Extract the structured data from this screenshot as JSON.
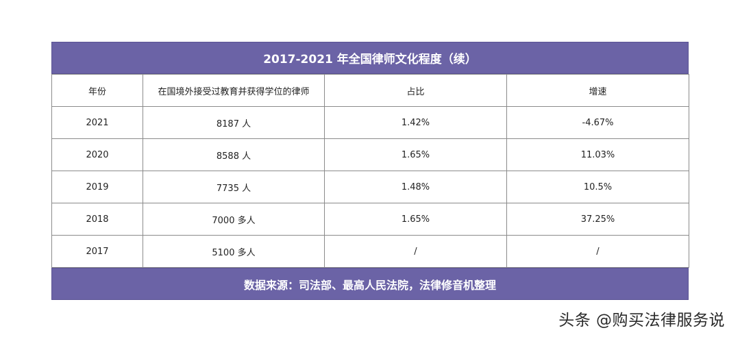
{
  "table": {
    "title": "2017-2021 年全国律师文化程度（续）",
    "headers": [
      "年份",
      "在国境外接受过教育并获得学位的律师",
      "占比",
      "增速"
    ],
    "rows": [
      [
        "2021",
        "8187 人",
        "1.42%",
        "-4.67%"
      ],
      [
        "2020",
        "8588 人",
        "1.65%",
        "11.03%"
      ],
      [
        "2019",
        "7735 人",
        "1.48%",
        "10.5%"
      ],
      [
        "2018",
        "7000 多人",
        "1.65%",
        "37.25%"
      ],
      [
        "2017",
        "5100 多人",
        "/",
        "/"
      ]
    ],
    "source": "数据来源：司法部、最高人民法院，法律修音机整理"
  },
  "watermark": "头条 @购买法律服务说"
}
